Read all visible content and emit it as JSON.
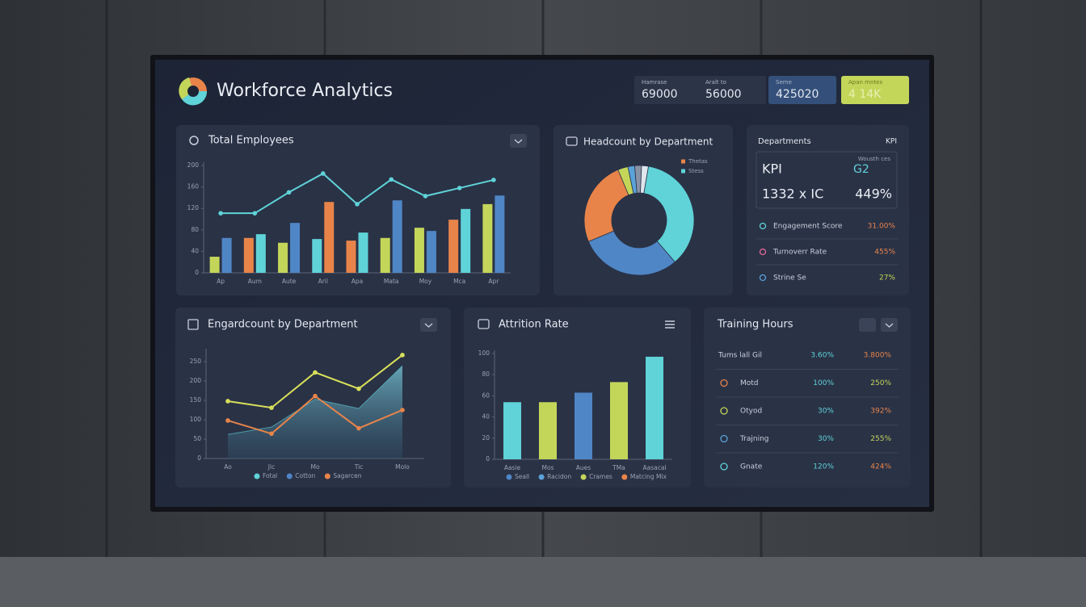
{
  "header": {
    "title": "Workforce Analytics"
  },
  "stats": [
    {
      "label": "Hamrase",
      "value": "69000"
    },
    {
      "label": "Aralt to",
      "value": "56000"
    },
    {
      "label": "Seme",
      "value": "425020"
    },
    {
      "label": "Apan mntes",
      "value": "4 14K"
    }
  ],
  "chart_data": [
    {
      "type": "bar",
      "title": "Total Employees",
      "categories": [
        "Ap",
        "Aum",
        "Aute",
        "Aril",
        "Apa",
        "Mata",
        "Moy",
        "Mca",
        "Apr"
      ],
      "series": [
        {
          "type": "bar",
          "color": "#c4d65a",
          "colors": [
            "#c4d65a",
            "#e8844a",
            "#c4d65a",
            "#5fd3d8",
            "#e8844a",
            "#c4d65a",
            "#c4d65a",
            "#e8844a",
            "#c4d65a"
          ],
          "values": [
            30,
            65,
            56,
            63,
            60,
            65,
            84,
            99,
            128
          ]
        },
        {
          "type": "bar",
          "color": "#4f86c6",
          "colors": [
            "#4f86c6",
            "#5fd3d8",
            "#4f86c6",
            "#e8844a",
            "#5fd3d8",
            "#4f86c6",
            "#4f86c6",
            "#5fd3d8",
            "#4f86c6"
          ],
          "values": [
            65,
            72,
            93,
            132,
            75,
            135,
            78,
            119,
            144
          ]
        },
        {
          "type": "line",
          "color": "#5fd3d8",
          "values": [
            111,
            111,
            150,
            185,
            128,
            174,
            143,
            158,
            173
          ]
        }
      ],
      "ylim": [
        0,
        200
      ],
      "yticks": [
        0,
        40,
        80,
        120,
        160,
        200
      ]
    },
    {
      "type": "pie",
      "title": "Headcount by Department",
      "values": [
        36,
        30,
        25,
        3,
        2,
        2,
        2
      ],
      "colors": [
        "#5fd3d8",
        "#4f86c6",
        "#e8844a",
        "#c4d65a",
        "#5aa2d8",
        "#8893a6",
        "#dfe6ee"
      ],
      "legend": [
        {
          "name": "Thetas",
          "color": "#e8844a"
        },
        {
          "name": "Stess",
          "color": "#5fd3d8"
        }
      ]
    },
    {
      "type": "line",
      "title": "Engardcount by Department",
      "categories": [
        "Ao",
        "Jic",
        "Mo",
        "Tic",
        "Molo"
      ],
      "series": [
        {
          "type": "area",
          "color": "#5fd3d8",
          "values": [
            62,
            81,
            153,
            129,
            239
          ]
        },
        {
          "type": "line",
          "color": "#d8e05a",
          "values": [
            148,
            131,
            222,
            180,
            267
          ]
        },
        {
          "type": "line",
          "color": "#e8844a",
          "values": [
            98,
            64,
            161,
            78,
            125
          ]
        }
      ],
      "legend": [
        {
          "name": "Fotal",
          "color": "#5fd3d8"
        },
        {
          "name": "Cotton",
          "color": "#4f86c6"
        },
        {
          "name": "Sagarcen",
          "color": "#e8844a"
        }
      ],
      "ylim": [
        0,
        275
      ],
      "yticks": [
        0,
        50,
        100,
        150,
        200,
        250
      ]
    },
    {
      "type": "bar",
      "title": "Attrition Rate",
      "categories": [
        "Aasie",
        "Mos",
        "Aues",
        "TMa",
        "Aasacal"
      ],
      "series": [
        {
          "type": "bar",
          "color": "#5fd3d8",
          "colors": [
            "#5fd3d8",
            "#c4d65a",
            "#4f86c6",
            "#c4d65a",
            "#5fd3d8"
          ],
          "values": [
            54,
            54,
            63,
            73,
            97
          ]
        }
      ],
      "legend": [
        {
          "name": "Seall",
          "color": "#4f86c6"
        },
        {
          "name": "Racidon",
          "color": "#5aa2d8"
        },
        {
          "name": "Crames",
          "color": "#c4d65a"
        },
        {
          "name": "Matcing Mix",
          "color": "#e8844a"
        }
      ],
      "ylim": [
        0,
        100
      ],
      "yticks": [
        0,
        20,
        40,
        60,
        80,
        100
      ]
    }
  ],
  "kpi_panel": {
    "title": "Departments",
    "tag": "KPI",
    "kpi_label": "KPI",
    "sub_label": "Wousth ces",
    "sub_value": "G2",
    "main_value": "1332 x IC",
    "main_pct": "449%",
    "rows": [
      {
        "label": "Engagement Score",
        "value": "31.00%"
      },
      {
        "label": "Turnoverr Rate",
        "value": "455%"
      },
      {
        "label": "Strine Se",
        "value": "27%"
      }
    ]
  },
  "training": {
    "title": "Training Hours",
    "rows": [
      [
        "Tums lall Gil",
        "3.60%",
        "3.800%"
      ],
      [
        "Motd",
        "100%",
        "250%"
      ],
      [
        "Otyod",
        "30%",
        "392%"
      ],
      [
        "Trajning",
        "30%",
        "255%"
      ],
      [
        "Gnate",
        "120%",
        "424%"
      ]
    ]
  }
}
